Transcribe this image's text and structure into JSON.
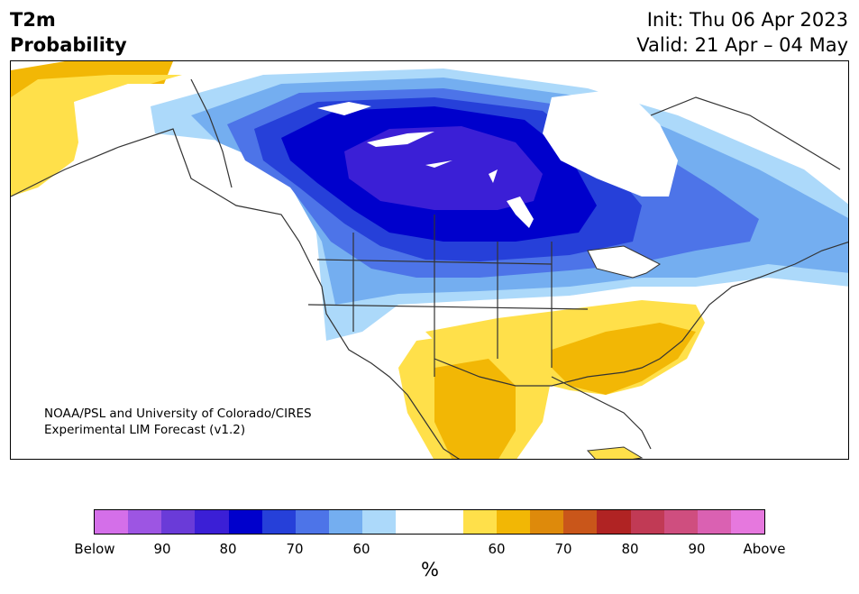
{
  "header": {
    "variable": "T2m",
    "product": "Probability",
    "init": "Init: Thu 06 Apr 2023",
    "valid": "Valid: 21 Apr – 04 May"
  },
  "map": {
    "credit_line1": "NOAA/PSL and University of Colorado/CIRES",
    "credit_line2": "Experimental LIM Forecast (v1.2)"
  },
  "colorbar": {
    "colors": [
      "#d46fe9",
      "#9d55e3",
      "#6a3bd8",
      "#3b1fd6",
      "#0000cc",
      "#2640d9",
      "#4d74e8",
      "#74aef0",
      "#acd9fa",
      "#ffffff",
      "#ffffff",
      "#ffe04a",
      "#f2b705",
      "#de8a0b",
      "#c9561a",
      "#b02323",
      "#c13a55",
      "#cf4e7f",
      "#da61b2",
      "#e678de"
    ],
    "tick_labels": [
      "Below",
      "90",
      "80",
      "70",
      "60",
      "60",
      "70",
      "80",
      "90",
      "Above"
    ],
    "unit": "%"
  }
}
